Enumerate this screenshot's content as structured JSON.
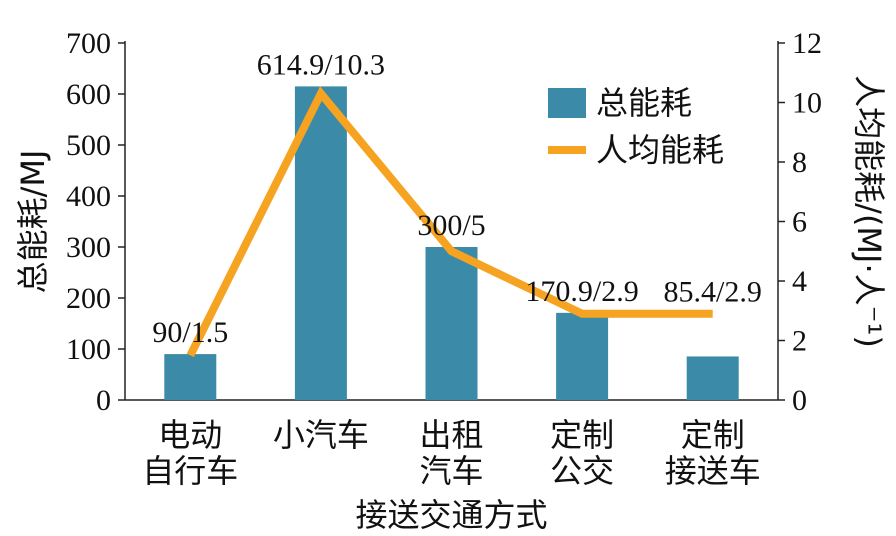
{
  "chart_data": {
    "type": "bar",
    "categories": [
      [
        "电动",
        "自行车"
      ],
      [
        "小汽车"
      ],
      [
        "出租",
        "汽车"
      ],
      [
        "定制",
        "公交"
      ],
      [
        "定制",
        "接送车"
      ]
    ],
    "series": [
      {
        "name": "总能耗",
        "type": "bar",
        "axis": "left",
        "values": [
          90,
          614.9,
          300,
          170.9,
          85.4
        ],
        "color": "#3a8aa8"
      },
      {
        "name": "人均能耗",
        "type": "line",
        "axis": "right",
        "values": [
          1.5,
          10.3,
          5,
          2.9,
          2.9
        ],
        "color": "#f5a321"
      }
    ],
    "data_labels": [
      "90/1.5",
      "614.9/10.3",
      "300/5",
      "170.9/2.9",
      "85.4/2.9"
    ],
    "xlabel": "接送交通方式",
    "ylabel": "总能耗/MJ",
    "y2label": "人均能耗/(MJ·人⁻¹)",
    "ylim": [
      0,
      700
    ],
    "y2lim": [
      0,
      12
    ],
    "yticks": [
      "0",
      "100",
      "200",
      "300",
      "400",
      "500",
      "600",
      "700"
    ],
    "y2ticks": [
      "0",
      "2",
      "4",
      "6",
      "8",
      "10",
      "12"
    ],
    "grid": false,
    "legend_position": "top-right"
  }
}
